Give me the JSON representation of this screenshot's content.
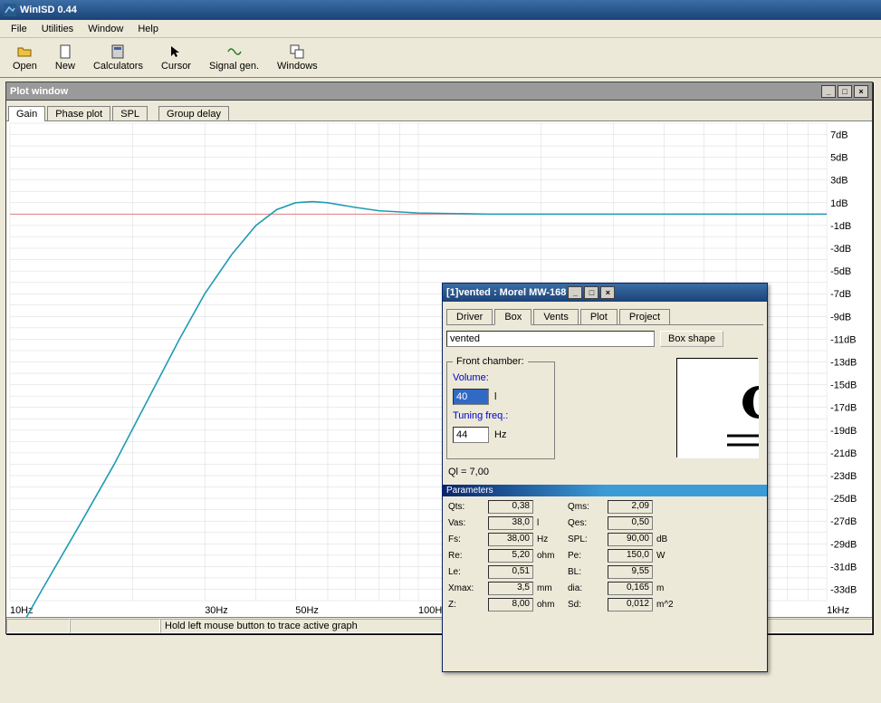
{
  "app": {
    "title": "WinISD 0.44",
    "menu": [
      "File",
      "Utilities",
      "Window",
      "Help"
    ],
    "toolbar": [
      {
        "label": "Open",
        "icon": "open"
      },
      {
        "label": "New",
        "icon": "new"
      },
      {
        "label": "Calculators",
        "icon": "calc"
      },
      {
        "label": "Cursor",
        "icon": "cursor"
      },
      {
        "label": "Signal gen.",
        "icon": "signal"
      },
      {
        "label": "Windows",
        "icon": "windows"
      }
    ]
  },
  "plotwin": {
    "title": "Plot window",
    "tabs": [
      "Gain",
      "Phase plot",
      "SPL",
      "Group delay"
    ],
    "active_tab": 0,
    "status": "Hold left mouse button to trace active graph",
    "chart": {
      "type": "line",
      "line_color": "#1f9bb3",
      "line_width": 1.6,
      "axis_color": "#c8c8c8",
      "grid_color": "#d8d8d8",
      "zero_line_color": "#e08080",
      "background": "#ffffff",
      "text_color": "#000000",
      "label_fontsize": 11,
      "x_log": true,
      "x_min_hz": 10,
      "x_max_hz": 1000,
      "x_label_ticks": [
        {
          "hz": 10,
          "label": "10Hz"
        },
        {
          "hz": 30,
          "label": "30Hz"
        },
        {
          "hz": 50,
          "label": "50Hz"
        },
        {
          "hz": 100,
          "label": "100H"
        },
        {
          "hz": 1000,
          "label": "1kHz"
        }
      ],
      "x_grid_hz": [
        10,
        20,
        30,
        40,
        50,
        60,
        70,
        80,
        90,
        100,
        200,
        300,
        400,
        500,
        600,
        700,
        800,
        900,
        1000
      ],
      "y_min_db": -34,
      "y_max_db": 8,
      "y_ticks_db": [
        7,
        5,
        3,
        1,
        -1,
        -3,
        -5,
        -7,
        -9,
        -11,
        -13,
        -15,
        -17,
        -19,
        -21,
        -23,
        -25,
        -27,
        -29,
        -31,
        -33
      ],
      "series": [
        {
          "hz": 10,
          "db": -38
        },
        {
          "hz": 12,
          "db": -33
        },
        {
          "hz": 15,
          "db": -27
        },
        {
          "hz": 18,
          "db": -22
        },
        {
          "hz": 22,
          "db": -16
        },
        {
          "hz": 26,
          "db": -11
        },
        {
          "hz": 30,
          "db": -7
        },
        {
          "hz": 35,
          "db": -3.5
        },
        {
          "hz": 40,
          "db": -1
        },
        {
          "hz": 45,
          "db": 0.4
        },
        {
          "hz": 50,
          "db": 1.0
        },
        {
          "hz": 55,
          "db": 1.1
        },
        {
          "hz": 60,
          "db": 1.0
        },
        {
          "hz": 70,
          "db": 0.6
        },
        {
          "hz": 80,
          "db": 0.3
        },
        {
          "hz": 100,
          "db": 0.1
        },
        {
          "hz": 150,
          "db": 0
        },
        {
          "hz": 300,
          "db": 0
        },
        {
          "hz": 1000,
          "db": 0
        }
      ]
    }
  },
  "dialog": {
    "title": "[1]vented : Morel MW-168",
    "tabs": [
      "Driver",
      "Box",
      "Vents",
      "Plot",
      "Project"
    ],
    "active_tab": 1,
    "box_type": "vented",
    "box_shape_btn": "Box shape",
    "front_chamber_label": "Front chamber:",
    "volume_label": "Volume:",
    "volume_value": "40",
    "volume_unit": "l",
    "tuning_label": "Tuning freq.:",
    "tuning_value": "44",
    "tuning_unit": "Hz",
    "ql_text": "Ql = 7,00",
    "param_header": "Parameters",
    "params": [
      {
        "l": "Qts:",
        "v": "0,38",
        "u": ""
      },
      {
        "l": "Qms:",
        "v": "2,09",
        "u": ""
      },
      {
        "l": "Vas:",
        "v": "38,0",
        "u": "l"
      },
      {
        "l": "Qes:",
        "v": "0,50",
        "u": ""
      },
      {
        "l": "Fs:",
        "v": "38,00",
        "u": "Hz"
      },
      {
        "l": "SPL:",
        "v": "90,00",
        "u": "dB"
      },
      {
        "l": "Re:",
        "v": "5,20",
        "u": "ohm"
      },
      {
        "l": "Pe:",
        "v": "150,0",
        "u": "W"
      },
      {
        "l": "Le:",
        "v": "0,51",
        "u": ""
      },
      {
        "l": "BL:",
        "v": "9,55",
        "u": ""
      },
      {
        "l": "Xmax:",
        "v": "3,5",
        "u": "mm"
      },
      {
        "l": "dia:",
        "v": "0,165",
        "u": "m"
      },
      {
        "l": "Z:",
        "v": "8,00",
        "u": "ohm"
      },
      {
        "l": "Sd:",
        "v": "0,012",
        "u": "m^2"
      }
    ]
  }
}
